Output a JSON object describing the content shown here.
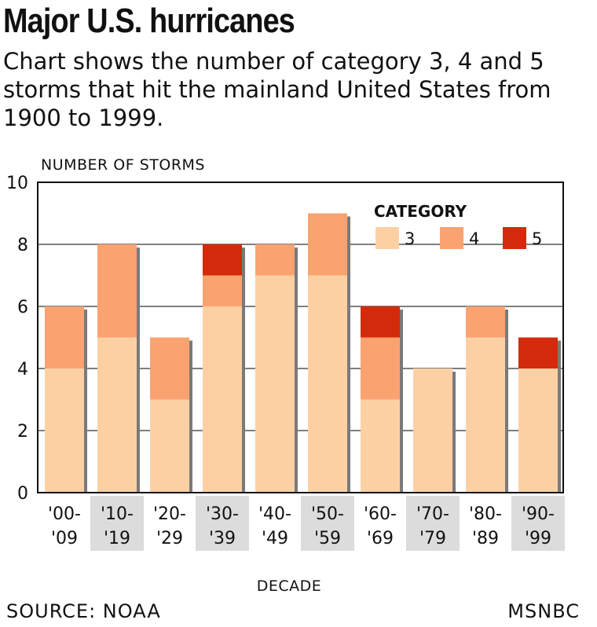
{
  "header": {
    "title": "Major U.S. hurricanes",
    "subtitle": "Chart shows the number of category 3, 4 and 5 storms that hit the mainland United States from 1900 to 1999."
  },
  "footer": {
    "source": "SOURCE: NOAA",
    "credit": "MSNBC"
  },
  "chart_data": {
    "type": "bar",
    "stacked": true,
    "title": "Major U.S. hurricanes",
    "ylabel": "NUMBER OF STORMS",
    "xlabel": "DECADE",
    "ylim": [
      0,
      10
    ],
    "yticks": [
      0,
      2,
      4,
      6,
      8,
      10
    ],
    "grid": true,
    "legend_title": "CATEGORY",
    "legend_position": "top-right",
    "categories": [
      [
        "'00-",
        "'09"
      ],
      [
        "'10-",
        "'19"
      ],
      [
        "'20-",
        "'29"
      ],
      [
        "'30-",
        "'39"
      ],
      [
        "'40-",
        "'49"
      ],
      [
        "'50-",
        "'59"
      ],
      [
        "'60-",
        "'69"
      ],
      [
        "'70-",
        "'79"
      ],
      [
        "'80-",
        "'89"
      ],
      [
        "'90-",
        "'99"
      ]
    ],
    "series": [
      {
        "name": "3",
        "color": "#fdd0a4",
        "values": [
          4,
          5,
          3,
          6,
          7,
          7,
          3,
          4,
          5,
          4
        ]
      },
      {
        "name": "4",
        "color": "#fba271",
        "values": [
          2,
          3,
          2,
          1,
          1,
          2,
          2,
          0,
          1,
          0
        ]
      },
      {
        "name": "5",
        "color": "#d42a0c",
        "values": [
          0,
          0,
          0,
          1,
          0,
          0,
          1,
          0,
          0,
          1
        ]
      }
    ]
  },
  "style": {
    "shadow_color": "#7a7a7a",
    "grid_color": "#555555",
    "label_band_color": "#dcdcdc"
  }
}
